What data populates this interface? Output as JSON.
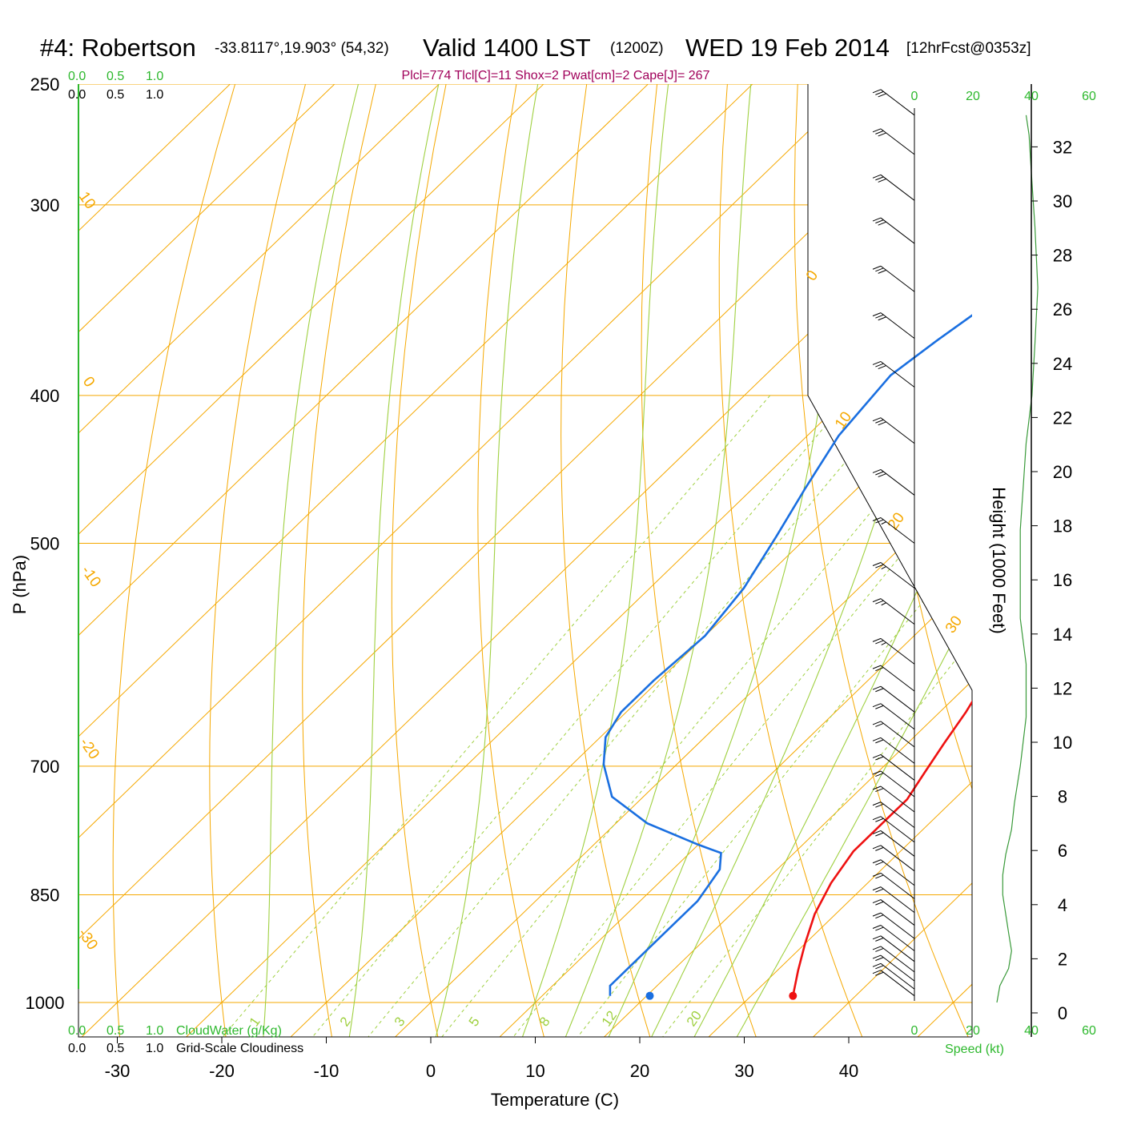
{
  "header": {
    "station": "#4: Robertson",
    "coords": "-33.8117°,19.903° (54,32)",
    "valid": "Valid 1400 LST",
    "utc": "(1200Z)",
    "date": "WED 19 Feb 2014",
    "forecast": "[12hrFcst@0353z]",
    "indices": "Plcl=774 Tlcl[C]=11 Shox=2 Pwat[cm]=2 Cape[J]= 267"
  },
  "scales": {
    "cloud_top": [
      "0.0",
      "0.5",
      "1.0"
    ],
    "cloudiness_top": [
      "0.0",
      "0.5",
      "1.0"
    ],
    "cloud_bottom": [
      "0.0",
      "0.5",
      "1.0"
    ],
    "cloudiness_bottom": [
      "0.0",
      "0.5",
      "1.0"
    ],
    "cloudwater_label": "CloudWater (g/Kg)",
    "cloudiness_label": "Grid-Scale Cloudiness",
    "speed_top": [
      "0",
      "20",
      "40",
      "60"
    ],
    "speed_bottom": [
      "0",
      "20",
      "40",
      "60"
    ],
    "speed_label": "Speed (kt)"
  },
  "colors": {
    "temperature": "#ee1111",
    "dewpoint": "#1a6fe0",
    "parcel": "#6a0a50",
    "isotherm": "#f5a800",
    "mixing_ratio": "#9fd040",
    "cloud_scale": "#2db82d",
    "wind_speed": "#3a9a3a"
  },
  "chart_data": {
    "type": "skew-t",
    "xlabel": "Temperature (C)",
    "ylabel": "P (hPa)",
    "y2label": "Height (1000 Feet)",
    "x_ticks": [
      -30,
      -20,
      -10,
      0,
      10,
      20,
      30,
      40
    ],
    "p_ticks": [
      250,
      300,
      400,
      500,
      700,
      850,
      1000
    ],
    "height_ticks": [
      0,
      2,
      4,
      6,
      8,
      10,
      12,
      14,
      16,
      18,
      20,
      22,
      24,
      26,
      28,
      30,
      32
    ],
    "isotherm_labels": [
      "-10",
      "0",
      "10",
      "20",
      "30",
      "10",
      "0",
      "-10",
      "-20",
      "-30"
    ],
    "mixing_ratio_labels": [
      "1",
      "2",
      "3",
      "5",
      "8",
      "12",
      "20"
    ],
    "surface_temperature_c": 34,
    "surface_dewpoint_c": 20.3,
    "temperature": [
      [
        4,
        262
      ],
      [
        4.5,
        270
      ],
      [
        5.5,
        284
      ],
      [
        6.5,
        300
      ],
      [
        8,
        322
      ],
      [
        9.5,
        345
      ],
      [
        11,
        368
      ],
      [
        12.5,
        392
      ],
      [
        14,
        420
      ],
      [
        15,
        448
      ],
      [
        16,
        478
      ],
      [
        16.5,
        500
      ],
      [
        17.5,
        525
      ],
      [
        18.5,
        553
      ],
      [
        19.5,
        577
      ],
      [
        21,
        610
      ],
      [
        22.5,
        645
      ],
      [
        23.5,
        676
      ],
      [
        24.5,
        706
      ],
      [
        25.5,
        736
      ],
      [
        25.5,
        760
      ],
      [
        25.5,
        796
      ],
      [
        26.5,
        835
      ],
      [
        28,
        875
      ],
      [
        30,
        915
      ],
      [
        32,
        953
      ],
      [
        34,
        990
      ]
    ],
    "dewpoint": [
      [
        -14,
        262
      ],
      [
        -14,
        285
      ],
      [
        -14,
        300
      ],
      [
        -14.5,
        322
      ],
      [
        -15.5,
        345
      ],
      [
        -17,
        368
      ],
      [
        -18,
        388
      ],
      [
        -17,
        425
      ],
      [
        -15,
        460
      ],
      [
        -13,
        495
      ],
      [
        -11,
        535
      ],
      [
        -10,
        575
      ],
      [
        -10.5,
        615
      ],
      [
        -10.5,
        645
      ],
      [
        -9.5,
        670
      ],
      [
        -7,
        698
      ],
      [
        -3,
        733
      ],
      [
        3,
        763
      ],
      [
        10,
        788
      ],
      [
        13,
        798
      ],
      [
        14.5,
        818
      ],
      [
        15.5,
        858
      ],
      [
        15.5,
        900
      ],
      [
        15.5,
        950
      ],
      [
        15.5,
        975
      ],
      [
        16.5,
        990
      ]
    ],
    "parcel": [
      [
        4.5,
        282
      ],
      [
        5.5,
        300
      ],
      [
        7.5,
        330
      ],
      [
        10,
        368
      ],
      [
        13,
        420
      ],
      [
        16,
        480
      ],
      [
        18.5,
        530
      ],
      [
        19,
        552
      ]
    ],
    "wind_speed_kt": [
      [
        20,
        1000
      ],
      [
        21,
        975
      ],
      [
        24,
        950
      ],
      [
        25,
        925
      ],
      [
        24,
        900
      ],
      [
        23,
        875
      ],
      [
        22,
        850
      ],
      [
        22,
        825
      ],
      [
        23,
        800
      ],
      [
        25,
        770
      ],
      [
        26,
        740
      ],
      [
        28,
        700
      ],
      [
        30,
        650
      ],
      [
        30,
        600
      ],
      [
        28,
        560
      ],
      [
        28,
        520
      ],
      [
        28,
        490
      ],
      [
        29,
        460
      ],
      [
        30,
        430
      ],
      [
        32,
        400
      ],
      [
        33,
        370
      ],
      [
        34,
        340
      ],
      [
        33,
        310
      ],
      [
        32,
        290
      ],
      [
        31,
        270
      ],
      [
        30,
        262
      ]
    ],
    "wind_barbs": [
      {
        "p": 262,
        "full": 3,
        "half": 0
      },
      {
        "p": 278,
        "full": 3,
        "half": 0
      },
      {
        "p": 298,
        "full": 3,
        "half": 0
      },
      {
        "p": 318,
        "full": 3,
        "half": 0
      },
      {
        "p": 342,
        "full": 3,
        "half": 0
      },
      {
        "p": 367,
        "full": 3,
        "half": 0
      },
      {
        "p": 395,
        "full": 3,
        "half": 0
      },
      {
        "p": 430,
        "full": 3,
        "half": 0
      },
      {
        "p": 465,
        "full": 3,
        "half": 0
      },
      {
        "p": 500,
        "full": 2,
        "half": 1
      },
      {
        "p": 535,
        "full": 2,
        "half": 1
      },
      {
        "p": 565,
        "full": 2,
        "half": 1
      },
      {
        "p": 600,
        "full": 2,
        "half": 1
      },
      {
        "p": 625,
        "full": 2,
        "half": 0
      },
      {
        "p": 645,
        "full": 2,
        "half": 0
      },
      {
        "p": 662,
        "full": 2,
        "half": 0
      },
      {
        "p": 680,
        "full": 2,
        "half": 0
      },
      {
        "p": 697,
        "full": 2,
        "half": 0
      },
      {
        "p": 715,
        "full": 2,
        "half": 0
      },
      {
        "p": 733,
        "full": 2,
        "half": 0
      },
      {
        "p": 750,
        "full": 2,
        "half": 0
      },
      {
        "p": 768,
        "full": 2,
        "half": 0
      },
      {
        "p": 785,
        "full": 2,
        "half": 0
      },
      {
        "p": 802,
        "full": 2,
        "half": 0
      },
      {
        "p": 820,
        "full": 2,
        "half": 0
      },
      {
        "p": 838,
        "full": 2,
        "half": 0
      },
      {
        "p": 855,
        "full": 2,
        "half": 0
      },
      {
        "p": 873,
        "full": 2,
        "half": 0
      },
      {
        "p": 890,
        "full": 2,
        "half": 0
      },
      {
        "p": 908,
        "full": 2,
        "half": 0
      },
      {
        "p": 925,
        "full": 2,
        "half": 0
      },
      {
        "p": 940,
        "full": 2,
        "half": 0
      },
      {
        "p": 955,
        "full": 2,
        "half": 0
      },
      {
        "p": 968,
        "full": 2,
        "half": 0
      },
      {
        "p": 980,
        "full": 2,
        "half": 0
      },
      {
        "p": 990,
        "full": 2,
        "half": 0
      }
    ]
  }
}
